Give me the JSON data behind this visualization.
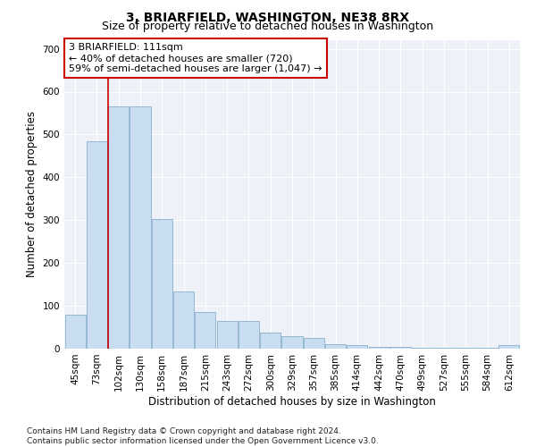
{
  "title": "3, BRIARFIELD, WASHINGTON, NE38 8RX",
  "subtitle": "Size of property relative to detached houses in Washington",
  "xlabel": "Distribution of detached houses by size in Washington",
  "ylabel": "Number of detached properties",
  "bar_color": "#c8ddf0",
  "bar_edge_color": "#8ab0cc",
  "background_color": "#eef2f8",
  "grid_color": "#ffffff",
  "fig_color": "#ffffff",
  "categories": [
    "45sqm",
    "73sqm",
    "102sqm",
    "130sqm",
    "158sqm",
    "187sqm",
    "215sqm",
    "243sqm",
    "272sqm",
    "300sqm",
    "329sqm",
    "357sqm",
    "385sqm",
    "414sqm",
    "442sqm",
    "470sqm",
    "499sqm",
    "527sqm",
    "555sqm",
    "584sqm",
    "612sqm"
  ],
  "values": [
    80,
    485,
    565,
    565,
    302,
    133,
    85,
    65,
    65,
    37,
    30,
    25,
    10,
    8,
    5,
    5,
    3,
    2,
    2,
    2,
    8
  ],
  "vline_color": "#cc0000",
  "vline_index": 1.5,
  "annotation_text": "3 BRIARFIELD: 111sqm\n← 40% of detached houses are smaller (720)\n59% of semi-detached houses are larger (1,047) →",
  "annotation_box_color": "#ffffff",
  "annotation_box_edge": "#cc0000",
  "ylim_max": 720,
  "yticks": [
    0,
    100,
    200,
    300,
    400,
    500,
    600,
    700
  ],
  "footnote": "Contains HM Land Registry data © Crown copyright and database right 2024.\nContains public sector information licensed under the Open Government Licence v3.0.",
  "title_fontsize": 10,
  "subtitle_fontsize": 9,
  "xlabel_fontsize": 8.5,
  "ylabel_fontsize": 8.5,
  "tick_fontsize": 7.5,
  "annot_fontsize": 8,
  "footnote_fontsize": 6.5
}
